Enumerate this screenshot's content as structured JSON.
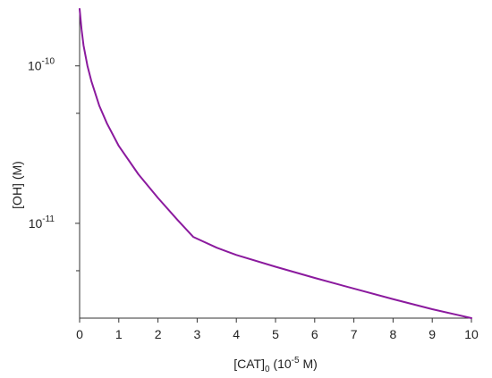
{
  "chart_data": {
    "type": "line",
    "xlabel": {
      "prefix": "[CAT]",
      "subscript": "0",
      "mid": " (10",
      "superscript": "-5",
      "suffix": " M)"
    },
    "ylabel": "[OH] (M)",
    "xlim": [
      0,
      10
    ],
    "ylim": [
      2.5e-12,
      2.3e-10
    ],
    "yscale": "log",
    "x_ticks": [
      "0",
      "1",
      "2",
      "3",
      "4",
      "5",
      "6",
      "7",
      "8",
      "9",
      "10"
    ],
    "y_major_ticks": [
      {
        "value": 1e-10,
        "base": "10",
        "exponent": "-10"
      },
      {
        "value": 1e-11,
        "base": "10",
        "exponent": "-11"
      }
    ],
    "y_minor_ticks": [
      5e-11,
      5e-12
    ],
    "grid": false,
    "series": [
      {
        "color": "#8B1A9E",
        "x": [
          0,
          0.05,
          0.1,
          0.2,
          0.3,
          0.5,
          0.7,
          1.0,
          1.5,
          2.0,
          2.5,
          2.9,
          3.5,
          4.0,
          5.0,
          6.0,
          7.0,
          8.0,
          9.0,
          10.0
        ],
        "y": [
          2.3e-10,
          1.7e-10,
          1.35e-10,
          1e-10,
          8e-11,
          5.6e-11,
          4.3e-11,
          3.1e-11,
          2.05e-11,
          1.45e-11,
          1.05e-11,
          8.2e-12,
          7e-12,
          6.3e-12,
          5.3e-12,
          4.5e-12,
          3.85e-12,
          3.3e-12,
          2.85e-12,
          2.5e-12
        ]
      }
    ]
  }
}
